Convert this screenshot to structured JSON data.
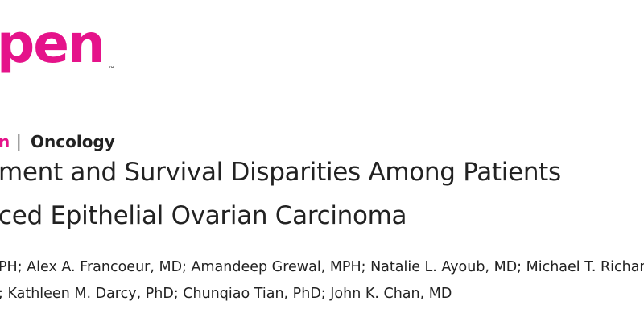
{
  "header": {
    "logo": "pen",
    "trademark": "™"
  },
  "article": {
    "section": "n",
    "separator": "|",
    "category": "Oncology",
    "title_lines": [
      "ment and Survival Disparities Among Patients",
      "ced Epithelial Ovarian Carcinoma"
    ],
    "author_lines": [
      "PH; Alex A. Francoeur, MD; Amandeep Grewal, MPH; Natalie L. Ayoub, MD; Michael T. Richar",
      "; Kathleen M. Darcy, PhD; Chunqiao Tian, PhD; John K. Chan, MD"
    ]
  }
}
